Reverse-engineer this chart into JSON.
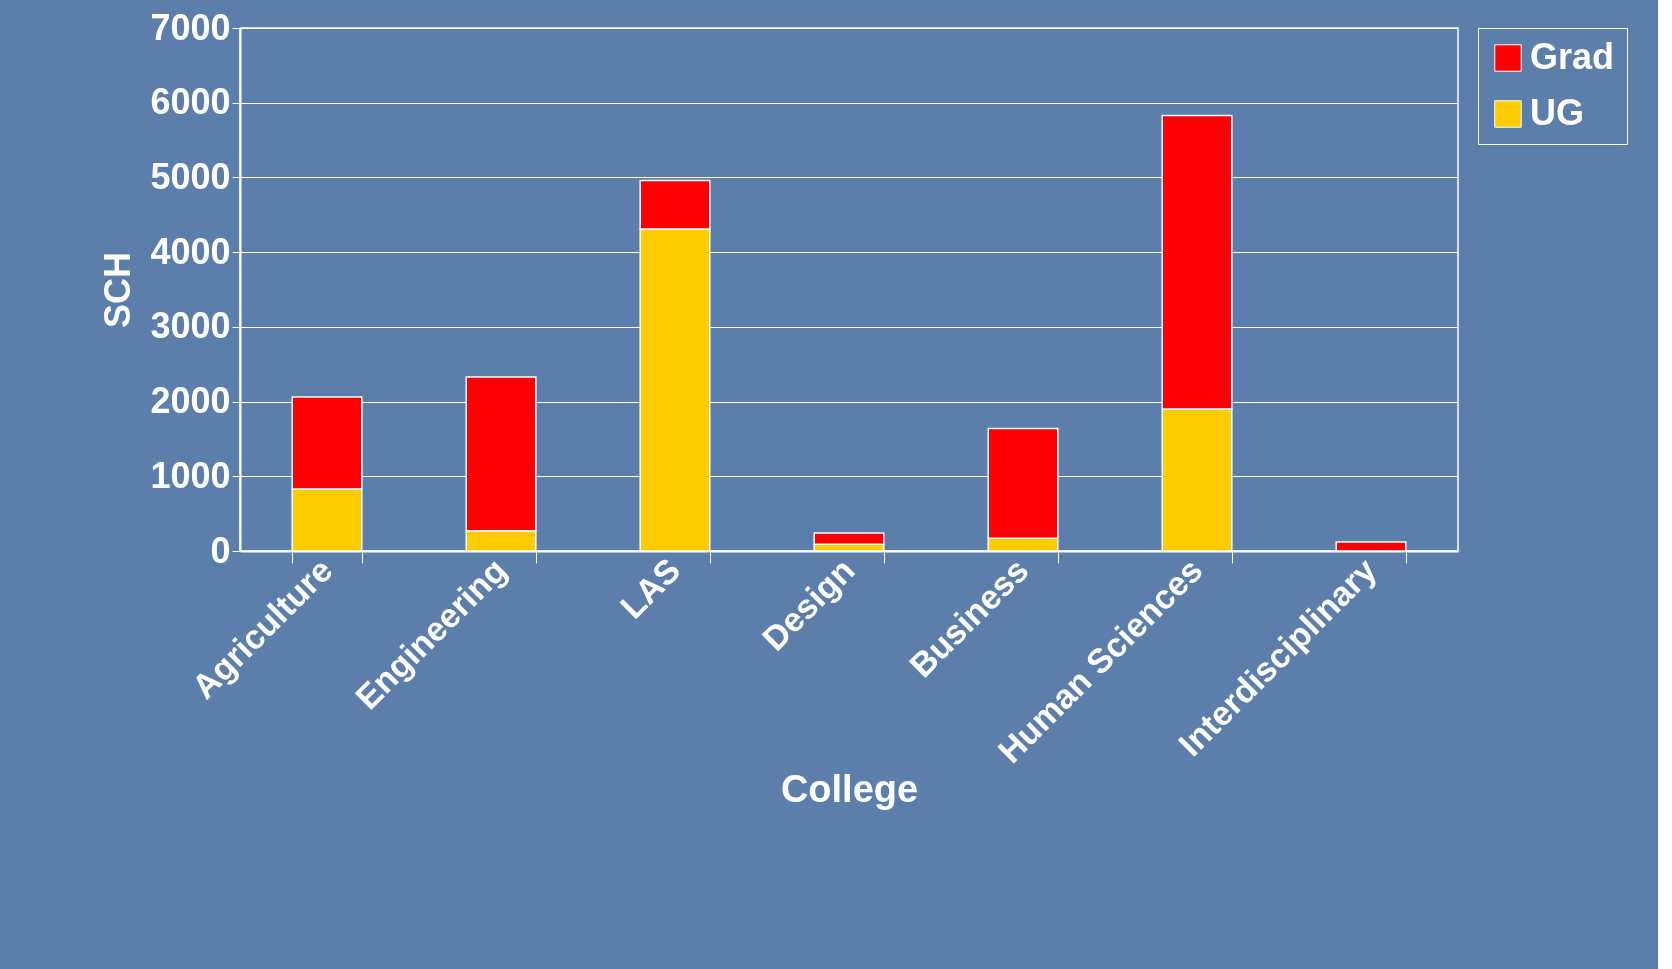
{
  "chart_data": {
    "type": "bar",
    "stacked": true,
    "xlabel": "College",
    "ylabel": "SCH",
    "categories": [
      "Agriculture",
      "Engineering",
      "LAS",
      "Design",
      "Business",
      "Human Sciences",
      "Interdisciplinary"
    ],
    "series": [
      {
        "name": "UG",
        "color": "#ffcc00",
        "values": [
          830,
          270,
          4310,
          90,
          170,
          1900,
          null
        ]
      },
      {
        "name": "Grad",
        "color": "#ff0000",
        "values": [
          1230,
          2060,
          650,
          150,
          1470,
          3930,
          120
        ]
      }
    ],
    "ylim": [
      0,
      7000
    ],
    "yticks": [
      0,
      1000,
      2000,
      3000,
      4000,
      5000,
      6000,
      7000
    ],
    "grid": "y",
    "legend": "right"
  }
}
